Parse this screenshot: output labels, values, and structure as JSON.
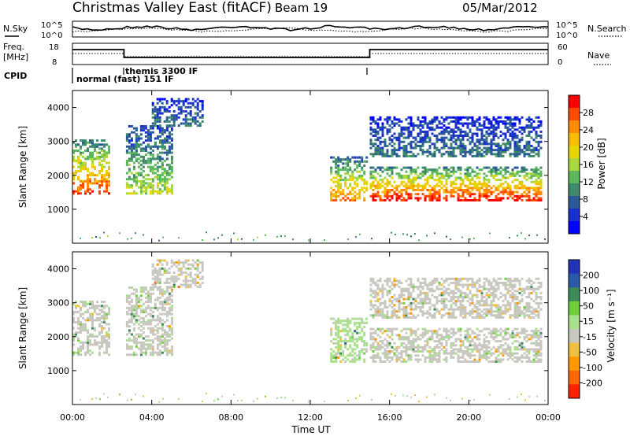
{
  "header": {
    "station": "Christmas Valley East (fitACF)",
    "beam": "Beam 19",
    "date": "05/Mar/2012"
  },
  "noise_panel": {
    "left_label": "N.Sky",
    "right_label": "N.Search",
    "ticks": [
      "10^5",
      "10^0"
    ]
  },
  "freq_panel": {
    "left_label_1": "Freq.",
    "left_label_2": "[MHz]",
    "left_ticks": [
      "18",
      "8"
    ],
    "right_label": "Nave",
    "right_ticks": [
      "60",
      "0"
    ]
  },
  "cpid_panel": {
    "label": "CPID",
    "modes": [
      "normal (fast) 151 IF",
      "themis 3300 IF"
    ]
  },
  "power_panel": {
    "ylabel": "Slant Range [km]",
    "colorbar_label": "Power [dB]",
    "colorbar_ticks": [
      "28",
      "24",
      "20",
      "16",
      "12",
      "8",
      "4"
    ],
    "colorbar_colors": [
      "#ff0000",
      "#ff4a00",
      "#ff8c00",
      "#f5be00",
      "#e6d600",
      "#a8d83c",
      "#5cb85c",
      "#3e8a6a",
      "#2a5a9a",
      "#1a2fd0",
      "#0000ff"
    ]
  },
  "velocity_panel": {
    "ylabel": "Slant Range [km]",
    "colorbar_label": "Velocity [m s⁻¹]",
    "colorbar_ticks": [
      "200",
      "100",
      "50",
      "15",
      "-15",
      "-50",
      "-100",
      "-200"
    ],
    "colorbar_colors": [
      "#2233b8",
      "#2a5aa8",
      "#3c8c5a",
      "#6fcf3a",
      "#a8e08c",
      "#c8c8c0",
      "#f0c040",
      "#ff9900",
      "#ff6600",
      "#ff2200"
    ]
  },
  "xaxis": {
    "label": "Time UT",
    "ticks": [
      "00:00",
      "04:00",
      "08:00",
      "12:00",
      "16:00",
      "20:00",
      "00:00"
    ]
  },
  "chart_data": {
    "type": "heatmap",
    "title": "Christmas Valley East (fitACF) Beam 19",
    "date": "05/Mar/2012",
    "xlabel": "Time UT",
    "ylabel": "Slant Range [km]",
    "xlim_hours": [
      0,
      24
    ],
    "ylim_km": [
      0,
      4500
    ],
    "yticks_km": [
      1000,
      2000,
      3000,
      4000
    ],
    "xticks": [
      "00:00",
      "04:00",
      "08:00",
      "12:00",
      "16:00",
      "20:00",
      "00:00"
    ],
    "power_scale_db": [
      0,
      30
    ],
    "velocity_scale_ms": [
      -250,
      250
    ],
    "cpid_segments": [
      {
        "label": "normal (fast) 151 IF",
        "start_hour": 0,
        "end_hour": 2.6
      },
      {
        "label": "themis 3300 IF",
        "start_hour": 2.6,
        "end_hour": 15.0
      },
      {
        "label": "normal (fast) 151 IF",
        "start_hour": 15.0,
        "end_hour": 24
      }
    ],
    "frequency_mhz": [
      {
        "start_hour": 0,
        "end_hour": 2.6,
        "freq": 16
      },
      {
        "start_hour": 2.6,
        "end_hour": 15.0,
        "freq": 11
      },
      {
        "start_hour": 15.0,
        "end_hour": 24,
        "freq": 16
      }
    ],
    "echo_regions": [
      {
        "start_hour": 0.0,
        "end_hour": 1.9,
        "range_start_km": 1500,
        "range_end_km": 3100,
        "peak_power_db": 28,
        "velocity_ms": 0
      },
      {
        "start_hour": 2.7,
        "end_hour": 5.0,
        "range_start_km": 1500,
        "range_end_km": 3500,
        "peak_power_db": 16,
        "velocity_ms": 0
      },
      {
        "start_hour": 4.0,
        "end_hour": 6.6,
        "range_start_km": 3500,
        "range_end_km": 4300,
        "peak_power_db": 8,
        "velocity_ms": -30
      },
      {
        "start_hour": 13.0,
        "end_hour": 14.9,
        "range_start_km": 1300,
        "range_end_km": 2600,
        "peak_power_db": 24,
        "velocity_ms": 30
      },
      {
        "start_hour": 15.0,
        "end_hour": 23.7,
        "range_start_km": 1300,
        "range_end_km": 2300,
        "peak_power_db": 30,
        "velocity_ms": 0
      },
      {
        "start_hour": 15.0,
        "end_hour": 23.7,
        "range_start_km": 2600,
        "range_end_km": 3800,
        "peak_power_db": 8,
        "velocity_ms": -20
      }
    ]
  }
}
